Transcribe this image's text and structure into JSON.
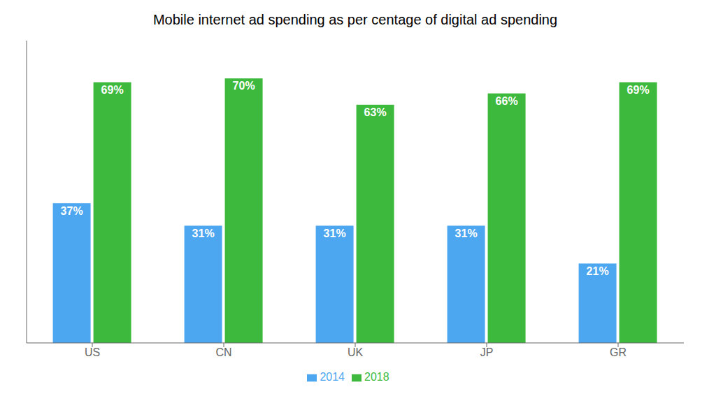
{
  "chart_data": {
    "type": "bar",
    "title": "Mobile internet ad spending as per centage of digital ad spending",
    "categories": [
      "US",
      "CN",
      "UK",
      "JP",
      "GR"
    ],
    "series": [
      {
        "name": "2014",
        "color": "#4da6f0",
        "values": [
          37,
          31,
          31,
          31,
          21
        ],
        "value_labels": [
          "37%",
          "31%",
          "31%",
          "31%",
          "21%"
        ]
      },
      {
        "name": "2018",
        "color": "#3dba3d",
        "values": [
          69,
          70,
          63,
          66,
          69
        ],
        "value_labels": [
          "69%",
          "70%",
          "63%",
          "66%",
          "69%"
        ]
      }
    ],
    "ylim": [
      0,
      80
    ],
    "grid": false,
    "legend": "bottom",
    "data_labels": true,
    "tick_labels": "x"
  }
}
